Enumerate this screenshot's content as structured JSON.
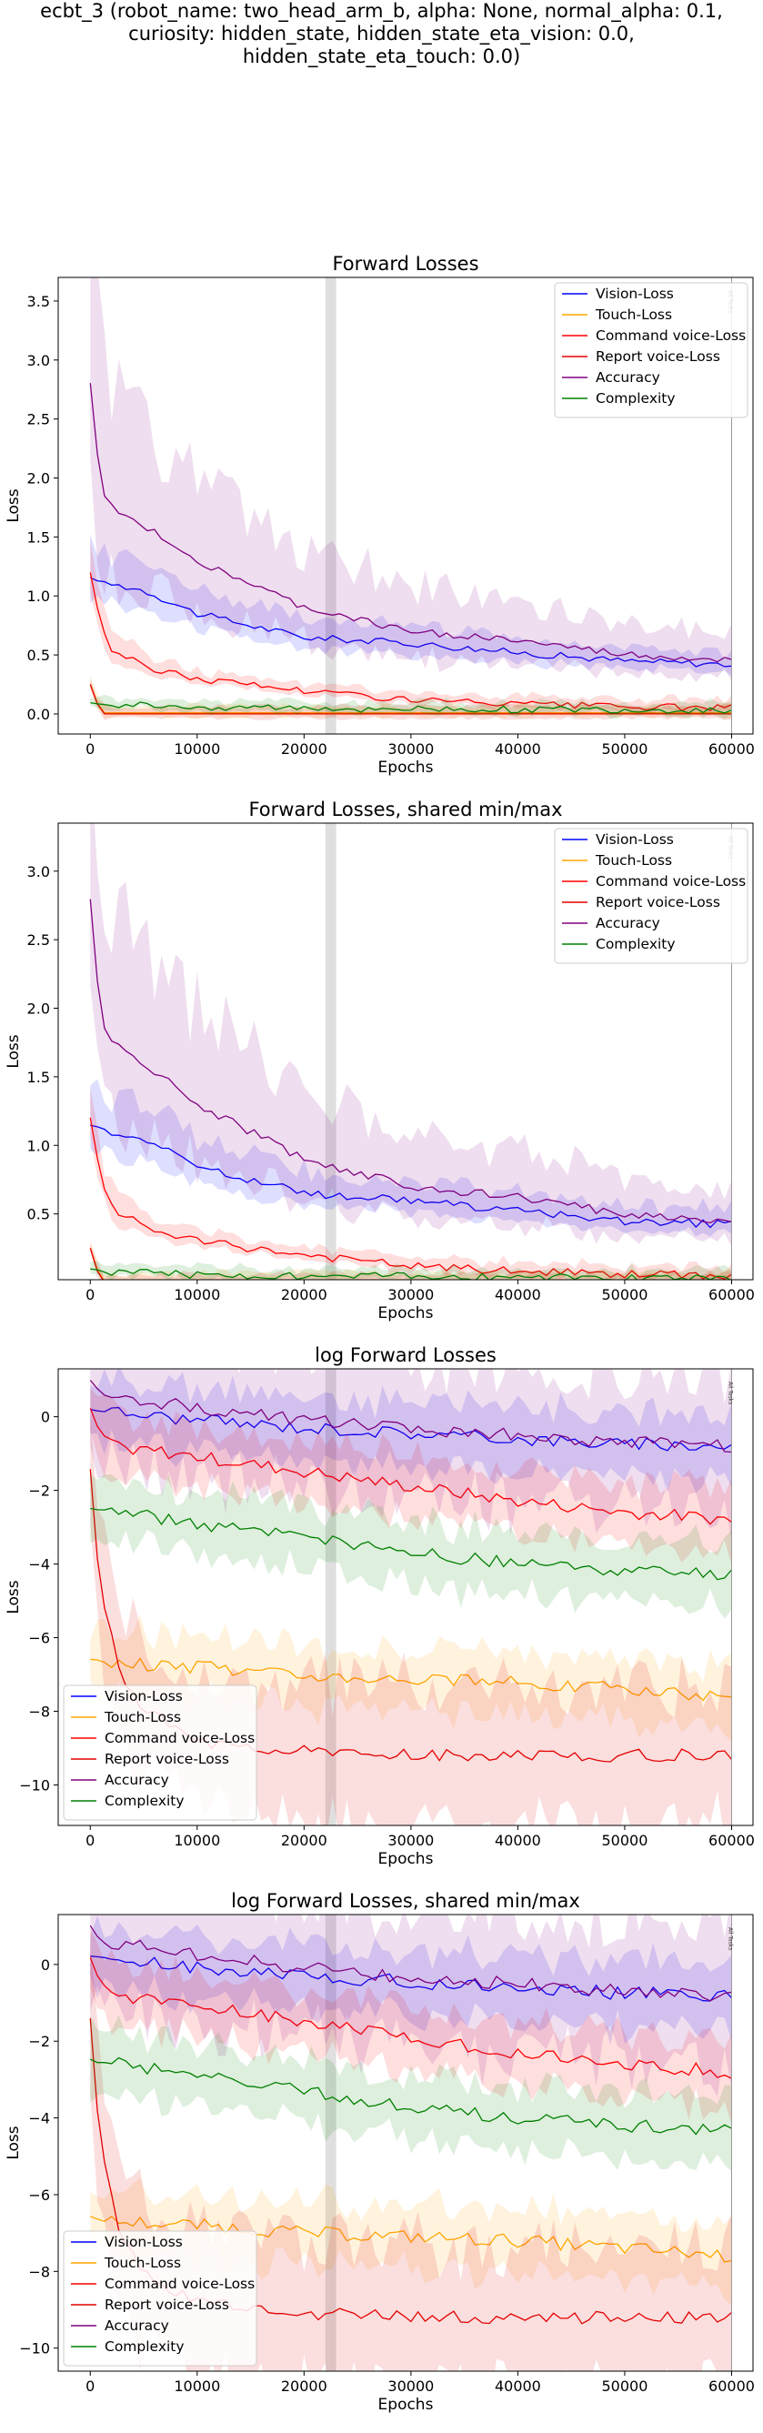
{
  "suptitle": [
    "ecbt_3 (robot_name: two_head_arm_b, alpha: None, normal_alpha: 0.1,",
    "curiosity: hidden_state, hidden_state_eta_vision: 0.0,",
    "hidden_state_eta_touch: 0.0)"
  ],
  "vertical_line_label": "All Tasks",
  "colors": {
    "vision": "#0000ff",
    "touch": "#ffa500",
    "command": "#ff0000",
    "report": "#e30000",
    "accuracy": "#800080",
    "complexity": "#008000",
    "marker": "#808080"
  },
  "chart_data": [
    {
      "type": "line",
      "title": "Forward Losses",
      "xlabel": "Epochs",
      "ylabel": "Loss",
      "xlim": [
        -3000,
        62000
      ],
      "ylim": [
        -0.17,
        3.7
      ],
      "xticks": [
        0,
        10000,
        20000,
        30000,
        40000,
        50000,
        60000
      ],
      "xtick_labels": [
        "0",
        "10000",
        "20000",
        "30000",
        "40000",
        "50000",
        "60000"
      ],
      "yticks": [
        0.0,
        0.5,
        1.0,
        1.5,
        2.0,
        2.5,
        3.0,
        3.5
      ],
      "ytick_labels": [
        "0.0",
        "0.5",
        "1.0",
        "1.5",
        "2.0",
        "2.5",
        "3.0",
        "3.5"
      ],
      "vline_x": 60000,
      "legend_loc": "upper right",
      "series": [
        {
          "name": "Vision-Loss",
          "color": "vision",
          "x": [
            0,
            2000,
            5000,
            10000,
            20000,
            30000,
            40000,
            50000,
            60000
          ],
          "y": [
            1.15,
            1.1,
            1.05,
            0.85,
            0.65,
            0.6,
            0.52,
            0.45,
            0.42
          ]
        },
        {
          "name": "Touch-Loss",
          "color": "touch",
          "x": [
            0,
            1000,
            60000
          ],
          "y": [
            0.25,
            0.01,
            0.01
          ]
        },
        {
          "name": "Command voice-Loss",
          "color": "command",
          "x": [
            0,
            1000,
            2000,
            5000,
            10000,
            20000,
            30000,
            40000,
            50000,
            60000
          ],
          "y": [
            1.2,
            0.75,
            0.55,
            0.4,
            0.3,
            0.2,
            0.12,
            0.08,
            0.06,
            0.05
          ]
        },
        {
          "name": "Report voice-Loss",
          "color": "report",
          "x": [
            0,
            1000,
            60000
          ],
          "y": [
            0.25,
            0.0,
            0.0
          ]
        },
        {
          "name": "Accuracy",
          "color": "accuracy",
          "x": [
            0,
            1000,
            2000,
            5000,
            10000,
            20000,
            30000,
            40000,
            50000,
            60000
          ],
          "y": [
            2.8,
            1.9,
            1.75,
            1.6,
            1.3,
            0.9,
            0.7,
            0.62,
            0.5,
            0.45
          ]
        },
        {
          "name": "Complexity",
          "color": "complexity",
          "x": [
            0,
            1000,
            10000,
            30000,
            60000
          ],
          "y": [
            0.1,
            0.08,
            0.06,
            0.04,
            0.03
          ]
        }
      ]
    },
    {
      "type": "line",
      "title": "Forward Losses, shared min/max",
      "xlabel": "Epochs",
      "ylabel": "Loss",
      "xlim": [
        -3000,
        62000
      ],
      "ylim": [
        0.02,
        3.35
      ],
      "xticks": [
        0,
        10000,
        20000,
        30000,
        40000,
        50000,
        60000
      ],
      "xtick_labels": [
        "0",
        "10000",
        "20000",
        "30000",
        "40000",
        "50000",
        "60000"
      ],
      "yticks": [
        0.5,
        1.0,
        1.5,
        2.0,
        2.5,
        3.0
      ],
      "ytick_labels": [
        "0.5",
        "1.0",
        "1.5",
        "2.0",
        "2.5",
        "3.0"
      ],
      "vline_x": 60000,
      "legend_loc": "upper right",
      "series": [
        {
          "name": "Vision-Loss",
          "color": "vision",
          "x": [
            0,
            2000,
            5000,
            10000,
            20000,
            30000,
            40000,
            50000,
            60000
          ],
          "y": [
            1.15,
            1.1,
            1.05,
            0.85,
            0.65,
            0.6,
            0.52,
            0.45,
            0.42
          ]
        },
        {
          "name": "Touch-Loss",
          "color": "touch",
          "x": [
            0,
            1000,
            60000
          ],
          "y": [
            0.25,
            0.01,
            0.01
          ]
        },
        {
          "name": "Command voice-Loss",
          "color": "command",
          "x": [
            0,
            1000,
            2000,
            5000,
            10000,
            20000,
            30000,
            40000,
            50000,
            60000
          ],
          "y": [
            1.2,
            0.75,
            0.55,
            0.4,
            0.3,
            0.2,
            0.12,
            0.08,
            0.06,
            0.05
          ]
        },
        {
          "name": "Report voice-Loss",
          "color": "report",
          "x": [
            0,
            1000,
            60000
          ],
          "y": [
            0.25,
            0.0,
            0.0
          ]
        },
        {
          "name": "Accuracy",
          "color": "accuracy",
          "x": [
            0,
            1000,
            2000,
            5000,
            10000,
            20000,
            30000,
            40000,
            50000,
            60000
          ],
          "y": [
            2.8,
            1.9,
            1.75,
            1.6,
            1.3,
            0.9,
            0.7,
            0.62,
            0.5,
            0.45
          ]
        },
        {
          "name": "Complexity",
          "color": "complexity",
          "x": [
            0,
            1000,
            10000,
            30000,
            60000
          ],
          "y": [
            0.1,
            0.08,
            0.06,
            0.04,
            0.03
          ]
        }
      ]
    },
    {
      "type": "line",
      "title": "log Forward Losses",
      "xlabel": "Epochs",
      "ylabel": "Loss",
      "xlim": [
        -3000,
        62000
      ],
      "ylim": [
        -11.1,
        1.3
      ],
      "xticks": [
        0,
        10000,
        20000,
        30000,
        40000,
        50000,
        60000
      ],
      "xtick_labels": [
        "0",
        "10000",
        "20000",
        "30000",
        "40000",
        "50000",
        "60000"
      ],
      "yticks": [
        -10,
        -8,
        -6,
        -4,
        -2,
        0
      ],
      "ytick_labels": [
        "−10",
        "−8",
        "−6",
        "−4",
        "−2",
        "0"
      ],
      "vline_x": 60000,
      "legend_loc": "lower left",
      "series": [
        {
          "name": "Vision-Loss",
          "color": "vision",
          "x": [
            0,
            5000,
            10000,
            20000,
            30000,
            40000,
            50000,
            60000
          ],
          "y": [
            0.2,
            0.05,
            -0.1,
            -0.3,
            -0.45,
            -0.6,
            -0.75,
            -0.8
          ]
        },
        {
          "name": "Touch-Loss",
          "color": "touch",
          "x": [
            0,
            2000,
            10000,
            20000,
            30000,
            40000,
            50000,
            60000
          ],
          "y": [
            -6.6,
            -6.7,
            -6.8,
            -7.0,
            -7.1,
            -7.2,
            -7.4,
            -7.6
          ]
        },
        {
          "name": "Command voice-Loss",
          "color": "command",
          "x": [
            0,
            1000,
            3000,
            5000,
            10000,
            20000,
            30000,
            40000,
            50000,
            60000
          ],
          "y": [
            0.2,
            -0.5,
            -0.8,
            -0.9,
            -1.1,
            -1.5,
            -1.9,
            -2.3,
            -2.6,
            -2.8
          ]
        },
        {
          "name": "Report voice-Loss",
          "color": "report",
          "x": [
            0,
            500,
            1500,
            3000,
            5000,
            10000,
            20000,
            30000,
            40000,
            50000,
            60000
          ],
          "y": [
            -1.4,
            -3.5,
            -5.5,
            -7.2,
            -8.0,
            -8.8,
            -9.1,
            -9.2,
            -9.2,
            -9.2,
            -9.2
          ]
        },
        {
          "name": "Accuracy",
          "color": "accuracy",
          "x": [
            0,
            1000,
            5000,
            10000,
            20000,
            30000,
            40000,
            50000,
            60000
          ],
          "y": [
            1.0,
            0.6,
            0.45,
            0.25,
            -0.1,
            -0.35,
            -0.5,
            -0.7,
            -0.8
          ]
        },
        {
          "name": "Complexity",
          "color": "complexity",
          "x": [
            0,
            5000,
            10000,
            20000,
            30000,
            40000,
            50000,
            60000
          ],
          "y": [
            -2.5,
            -2.7,
            -2.9,
            -3.3,
            -3.7,
            -4.0,
            -4.2,
            -4.3
          ]
        }
      ]
    },
    {
      "type": "line",
      "title": "log Forward Losses, shared min/max",
      "xlabel": "Epochs",
      "ylabel": "Loss",
      "xlim": [
        -3000,
        62000
      ],
      "ylim": [
        -10.6,
        1.3
      ],
      "xticks": [
        0,
        10000,
        20000,
        30000,
        40000,
        50000,
        60000
      ],
      "xtick_labels": [
        "0",
        "10000",
        "20000",
        "30000",
        "40000",
        "50000",
        "60000"
      ],
      "yticks": [
        -10,
        -8,
        -6,
        -4,
        -2,
        0
      ],
      "ytick_labels": [
        "−10",
        "−8",
        "−6",
        "−4",
        "−2",
        "0"
      ],
      "vline_x": 60000,
      "legend_loc": "lower left",
      "series": [
        {
          "name": "Vision-Loss",
          "color": "vision",
          "x": [
            0,
            5000,
            10000,
            20000,
            30000,
            40000,
            50000,
            60000
          ],
          "y": [
            0.2,
            0.05,
            -0.1,
            -0.3,
            -0.45,
            -0.6,
            -0.75,
            -0.8
          ]
        },
        {
          "name": "Touch-Loss",
          "color": "touch",
          "x": [
            0,
            2000,
            10000,
            20000,
            30000,
            40000,
            50000,
            60000
          ],
          "y": [
            -6.6,
            -6.7,
            -6.8,
            -7.0,
            -7.1,
            -7.2,
            -7.4,
            -7.6
          ]
        },
        {
          "name": "Command voice-Loss",
          "color": "command",
          "x": [
            0,
            1000,
            3000,
            5000,
            10000,
            20000,
            30000,
            40000,
            50000,
            60000
          ],
          "y": [
            0.2,
            -0.5,
            -0.8,
            -0.9,
            -1.1,
            -1.5,
            -1.9,
            -2.3,
            -2.6,
            -2.8
          ]
        },
        {
          "name": "Report voice-Loss",
          "color": "report",
          "x": [
            0,
            500,
            1500,
            3000,
            5000,
            10000,
            20000,
            30000,
            40000,
            50000,
            60000
          ],
          "y": [
            -1.4,
            -3.5,
            -5.5,
            -7.2,
            -8.0,
            -8.8,
            -9.1,
            -9.2,
            -9.2,
            -9.2,
            -9.2
          ]
        },
        {
          "name": "Accuracy",
          "color": "accuracy",
          "x": [
            0,
            1000,
            5000,
            10000,
            20000,
            30000,
            40000,
            50000,
            60000
          ],
          "y": [
            1.0,
            0.6,
            0.45,
            0.25,
            -0.1,
            -0.35,
            -0.5,
            -0.7,
            -0.8
          ]
        },
        {
          "name": "Complexity",
          "color": "complexity",
          "x": [
            0,
            5000,
            10000,
            20000,
            30000,
            40000,
            50000,
            60000
          ],
          "y": [
            -2.5,
            -2.7,
            -2.9,
            -3.3,
            -3.7,
            -4.0,
            -4.2,
            -4.3
          ]
        }
      ]
    }
  ]
}
